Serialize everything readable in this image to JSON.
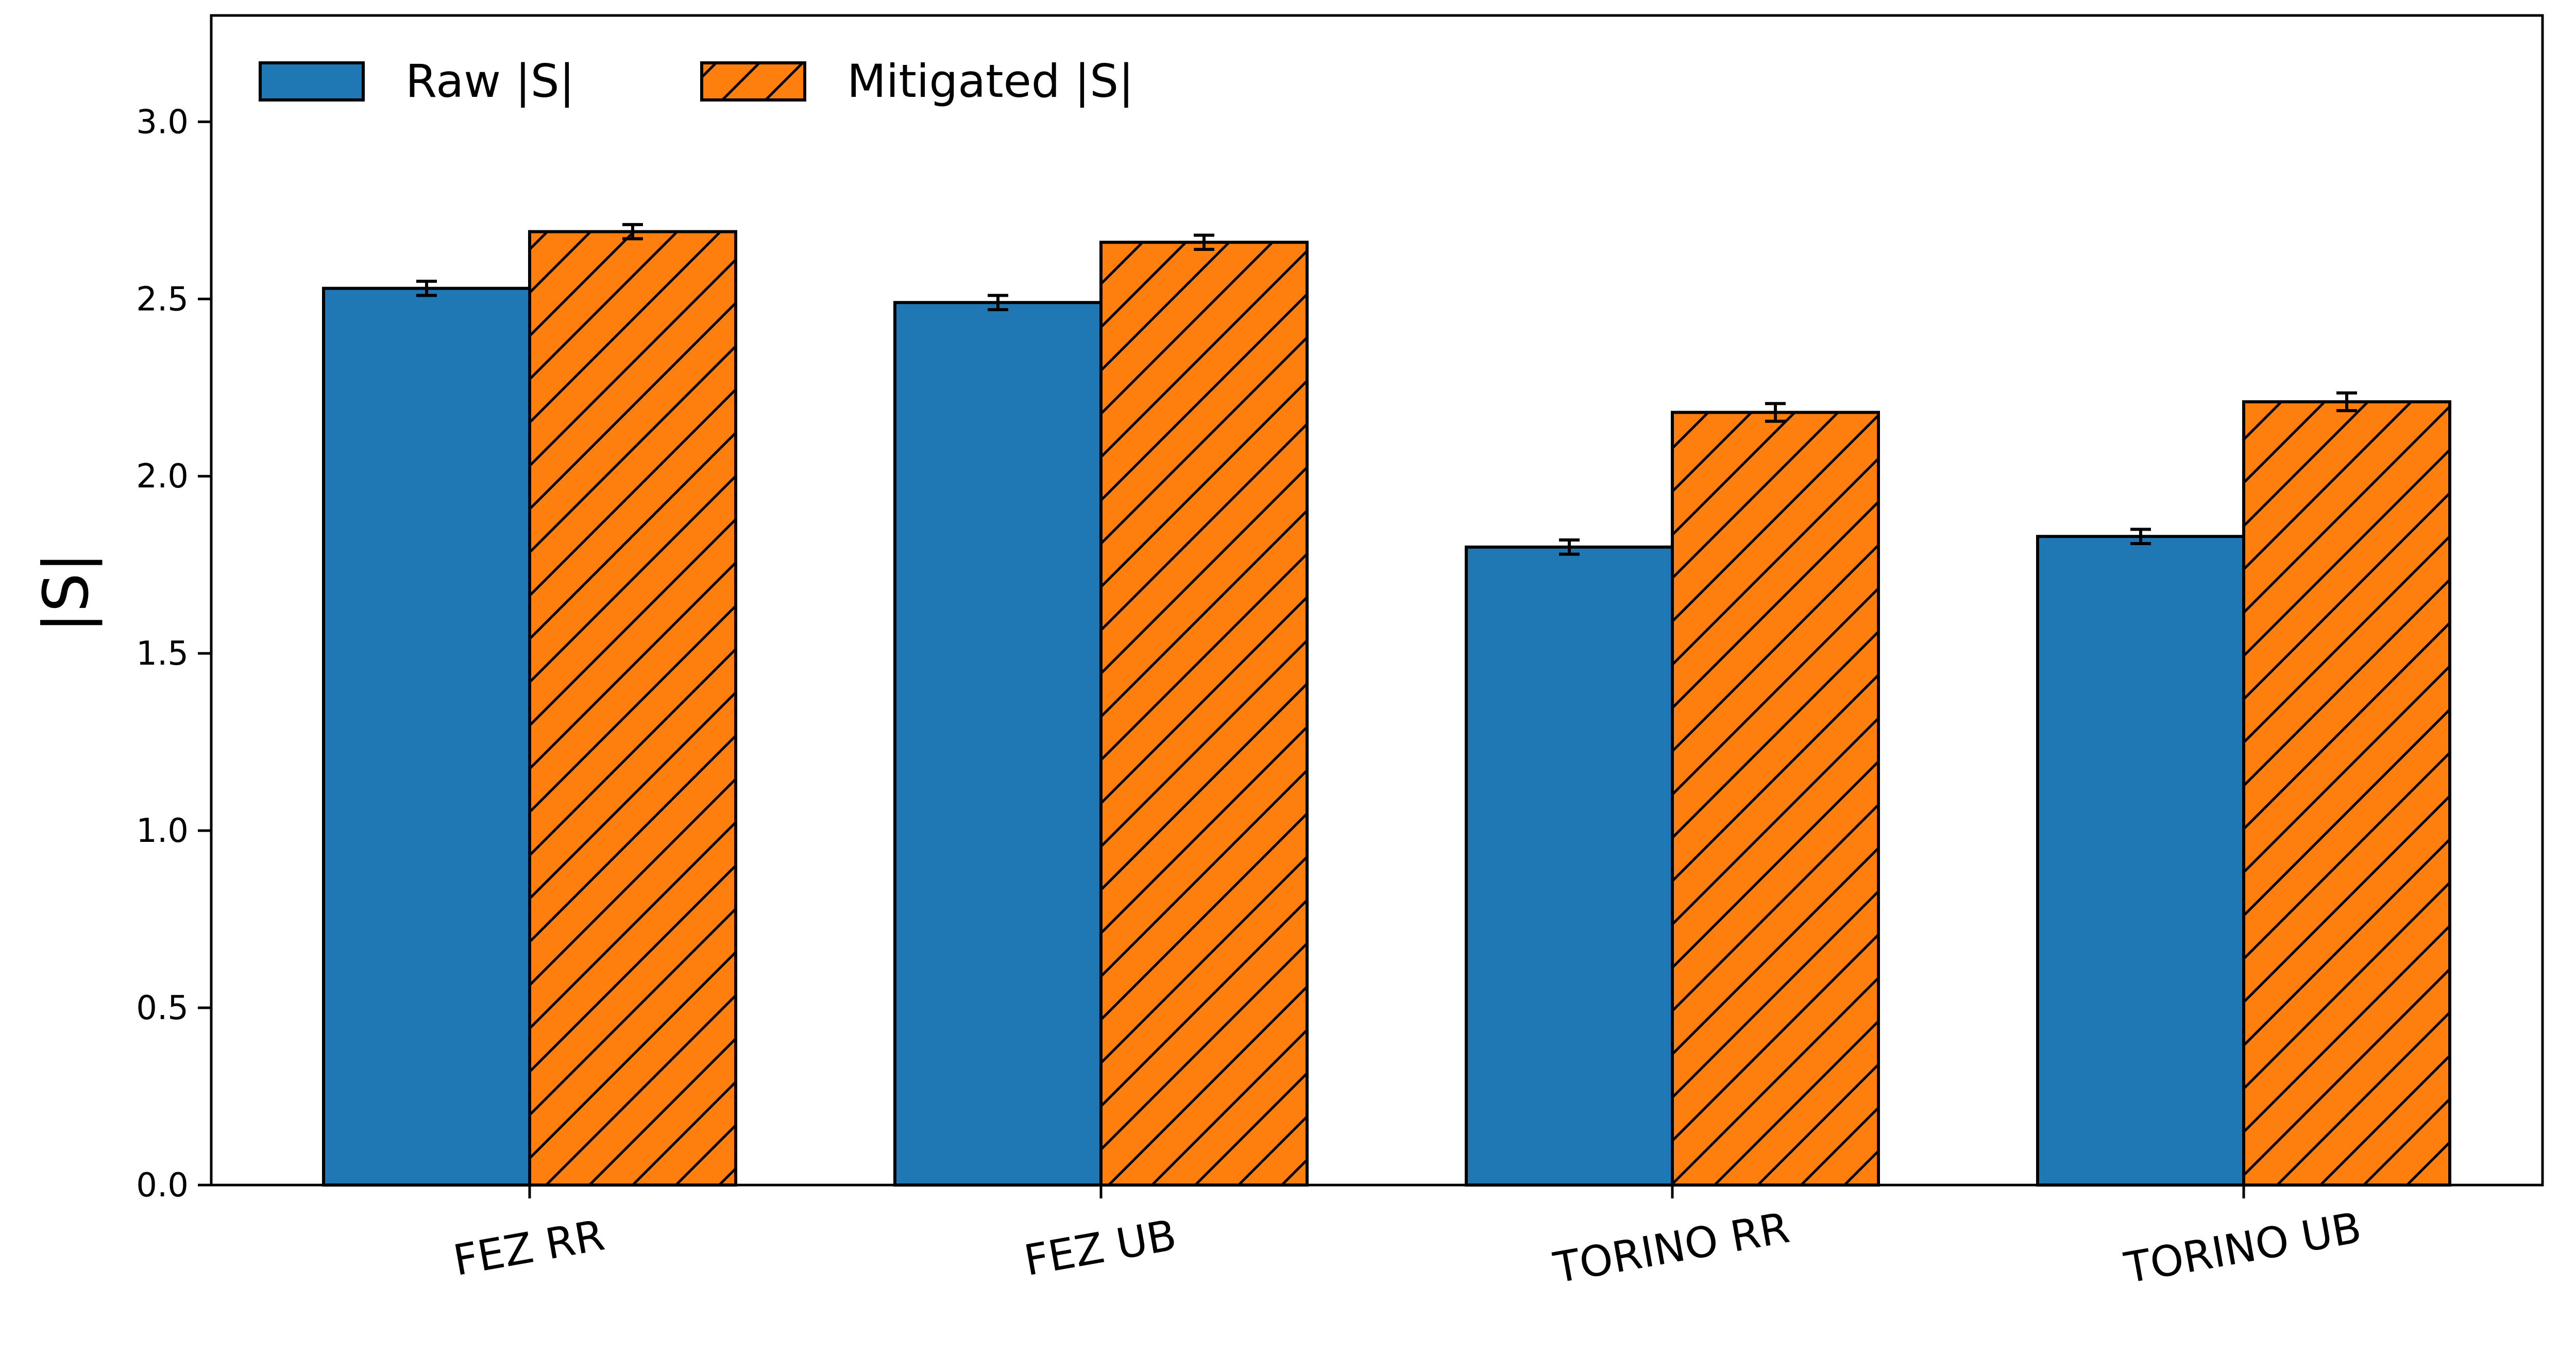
{
  "chart_data": {
    "type": "bar",
    "title": "",
    "xlabel": "",
    "ylabel": "|S|",
    "ylim": [
      0,
      3.3
    ],
    "yticks": [
      "0.0",
      "0.5",
      "1.0",
      "1.5",
      "2.0",
      "2.5",
      "3.0"
    ],
    "categories": [
      "FEZ RR",
      "FEZ UB",
      "TORINO RR",
      "TORINO UB"
    ],
    "series": [
      {
        "name": "Raw |S|",
        "values": [
          2.53,
          2.49,
          1.8,
          1.83
        ],
        "errors": [
          0.02,
          0.02,
          0.02,
          0.02
        ],
        "color": "#1f77b4",
        "hatch": false
      },
      {
        "name": "Mitigated |S|",
        "values": [
          2.69,
          2.66,
          2.18,
          2.21
        ],
        "errors": [
          0.02,
          0.02,
          0.025,
          0.025
        ],
        "color": "#ff7f0e",
        "hatch": true
      }
    ],
    "grid": false,
    "legend_position": "top-left"
  }
}
